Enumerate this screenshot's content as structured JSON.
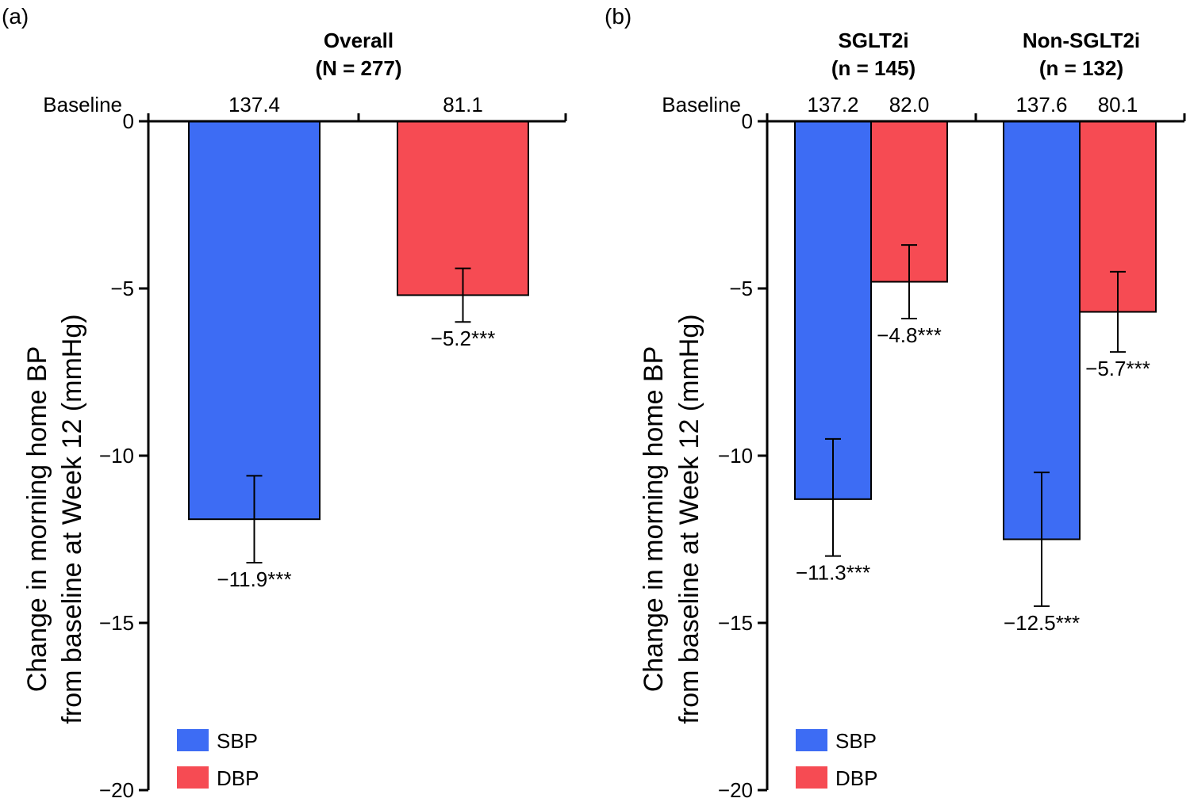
{
  "colors": {
    "sbp": "#3D6CF4",
    "dbp": "#F64B53",
    "axis": "#000000"
  },
  "chart_data": [
    {
      "panel_label": "(a)",
      "type": "bar",
      "ylabel_line1": "Change in morning home BP",
      "ylabel_line2": "from baseline at Week 12 (mmHg)",
      "ylim": [
        -20,
        0
      ],
      "yticks": [
        0,
        -5,
        -10,
        -15,
        -20
      ],
      "ytick_labels": [
        "0",
        "−5",
        "−10",
        "−15",
        "−20"
      ],
      "baseline_label": "Baseline",
      "legend_position": "bottom-left",
      "legend": [
        {
          "name": "SBP",
          "color_key": "sbp"
        },
        {
          "name": "DBP",
          "color_key": "dbp"
        }
      ],
      "groups": [
        {
          "title_line1": "Overall",
          "title_line2": "(N = 277)",
          "bars": [
            {
              "series": "SBP",
              "value": -11.9,
              "error_low": -13.2,
              "error_high": -10.6,
              "label": "−11.9***",
              "baseline": "137.4"
            },
            {
              "series": "DBP",
              "value": -5.2,
              "error_low": -6.0,
              "error_high": -4.4,
              "label": "−5.2***",
              "baseline": "81.1"
            }
          ]
        }
      ]
    },
    {
      "panel_label": "(b)",
      "type": "bar",
      "ylabel_line1": "Change in morning home BP",
      "ylabel_line2": "from baseline at Week 12 (mmHg)",
      "ylim": [
        -20,
        0
      ],
      "yticks": [
        0,
        -5,
        -10,
        -15,
        -20
      ],
      "ytick_labels": [
        "0",
        "−5",
        "−10",
        "−15",
        "−20"
      ],
      "baseline_label": "Baseline",
      "legend_position": "bottom-left",
      "legend": [
        {
          "name": "SBP",
          "color_key": "sbp"
        },
        {
          "name": "DBP",
          "color_key": "dbp"
        }
      ],
      "groups": [
        {
          "title_line1": "SGLT2i",
          "title_line2": "(n = 145)",
          "bars": [
            {
              "series": "SBP",
              "value": -11.3,
              "error_low": -13.0,
              "error_high": -9.5,
              "label": "−11.3***",
              "baseline": "137.2"
            },
            {
              "series": "DBP",
              "value": -4.8,
              "error_low": -5.9,
              "error_high": -3.7,
              "label": "−4.8***",
              "baseline": "82.0"
            }
          ]
        },
        {
          "title_line1": "Non-SGLT2i",
          "title_line2": "(n = 132)",
          "bars": [
            {
              "series": "SBP",
              "value": -12.5,
              "error_low": -14.5,
              "error_high": -10.5,
              "label": "−12.5***",
              "baseline": "137.6"
            },
            {
              "series": "DBP",
              "value": -5.7,
              "error_low": -6.9,
              "error_high": -4.5,
              "label": "−5.7***",
              "baseline": "80.1"
            }
          ]
        }
      ]
    }
  ]
}
